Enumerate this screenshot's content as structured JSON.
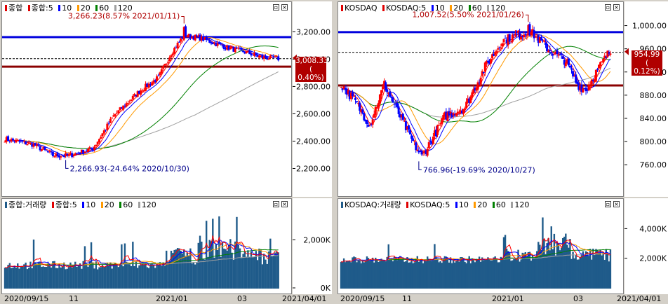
{
  "charts": [
    {
      "price": {
        "legend": {
          "main": "종합",
          "ma_prefix": "종합:5",
          "ma10": "10",
          "ma20": "20",
          "ma60": "60",
          "ma120": "120"
        },
        "yticks": [
          "3,200.00",
          "3,000.00",
          "2,800.00",
          "2,600.00",
          "2,400.00",
          "2,200.00"
        ],
        "current": {
          "value": "3,008.33",
          "change": "( 0.40%)"
        },
        "high_annotation": "3,266.23(8.57% 2021/01/11)",
        "low_annotation": "2,266.93(-24.64% 2020/10/30)"
      },
      "volume": {
        "legend": {
          "main": "종합:거래량",
          "ma_prefix": "종합:5",
          "ma10": "10",
          "ma20": "20",
          "ma60": "60",
          "ma120": "120"
        },
        "yticks": [
          "2,000K",
          "0K"
        ]
      }
    },
    {
      "price": {
        "legend": {
          "main": "KOSDAQ",
          "ma_prefix": "KOSDAQ:5",
          "ma10": "10",
          "ma20": "20",
          "ma60": "60",
          "ma120": "120"
        },
        "yticks": [
          "1,000.00",
          "960.00",
          "920.00",
          "880.00",
          "840.00",
          "800.00",
          "760.00"
        ],
        "current": {
          "value": "954.99",
          "change": "( 0.12%)"
        },
        "high_annotation": "1,007.52(5.50% 2021/01/26)",
        "low_annotation": "766.96(-19.69% 2020/10/27)"
      },
      "volume": {
        "legend": {
          "main": "KOSDAQ:거래량",
          "ma_prefix": "KOSDAQ:5",
          "ma10": "10",
          "ma20": "20",
          "ma60": "60",
          "ma120": "120"
        },
        "yticks": [
          "4,000K",
          "2,000K"
        ]
      }
    }
  ],
  "xaxis": {
    "left": [
      "2020/09/15",
      "11",
      "2021/01",
      "03",
      "2021/04/01"
    ],
    "right": [
      "2020/09/15",
      "11",
      "2021/01",
      "03",
      "2021/04/01"
    ]
  },
  "colors": {
    "up": "#ff0000",
    "down": "#0000ff",
    "ma5": "#ff0000",
    "ma10": "#0000ff",
    "ma20": "#ff9900",
    "ma60": "#008000",
    "ma120": "#a0a0a0",
    "level_blue": "#0000dd",
    "level_red": "#8b0000",
    "volume": "#1f5b8a",
    "price_tag": "#b00000"
  },
  "chart_data": [
    {
      "type": "candlestick",
      "name": "종합",
      "x": [
        "2020/09/15",
        "2020/11",
        "2021/01",
        "2021/03"
      ],
      "high": {
        "value": 3266.23,
        "date": "2021/01/11"
      },
      "low": {
        "value": 2266.93,
        "date": "2020/10/30"
      },
      "current": 3008.33,
      "levels": [
        3166,
        2950
      ],
      "ylim": [
        2100,
        3330
      ]
    },
    {
      "type": "candlestick",
      "name": "KOSDAQ",
      "x": [
        "2020/09/15",
        "2020/11",
        "2021/01",
        "2021/03"
      ],
      "high": {
        "value": 1007.52,
        "date": "2021/01/26"
      },
      "low": {
        "value": 766.96,
        "date": "2020/10/27"
      },
      "current": 954.99,
      "levels": [
        990,
        898
      ],
      "ylim": [
        730,
        1020
      ]
    }
  ]
}
